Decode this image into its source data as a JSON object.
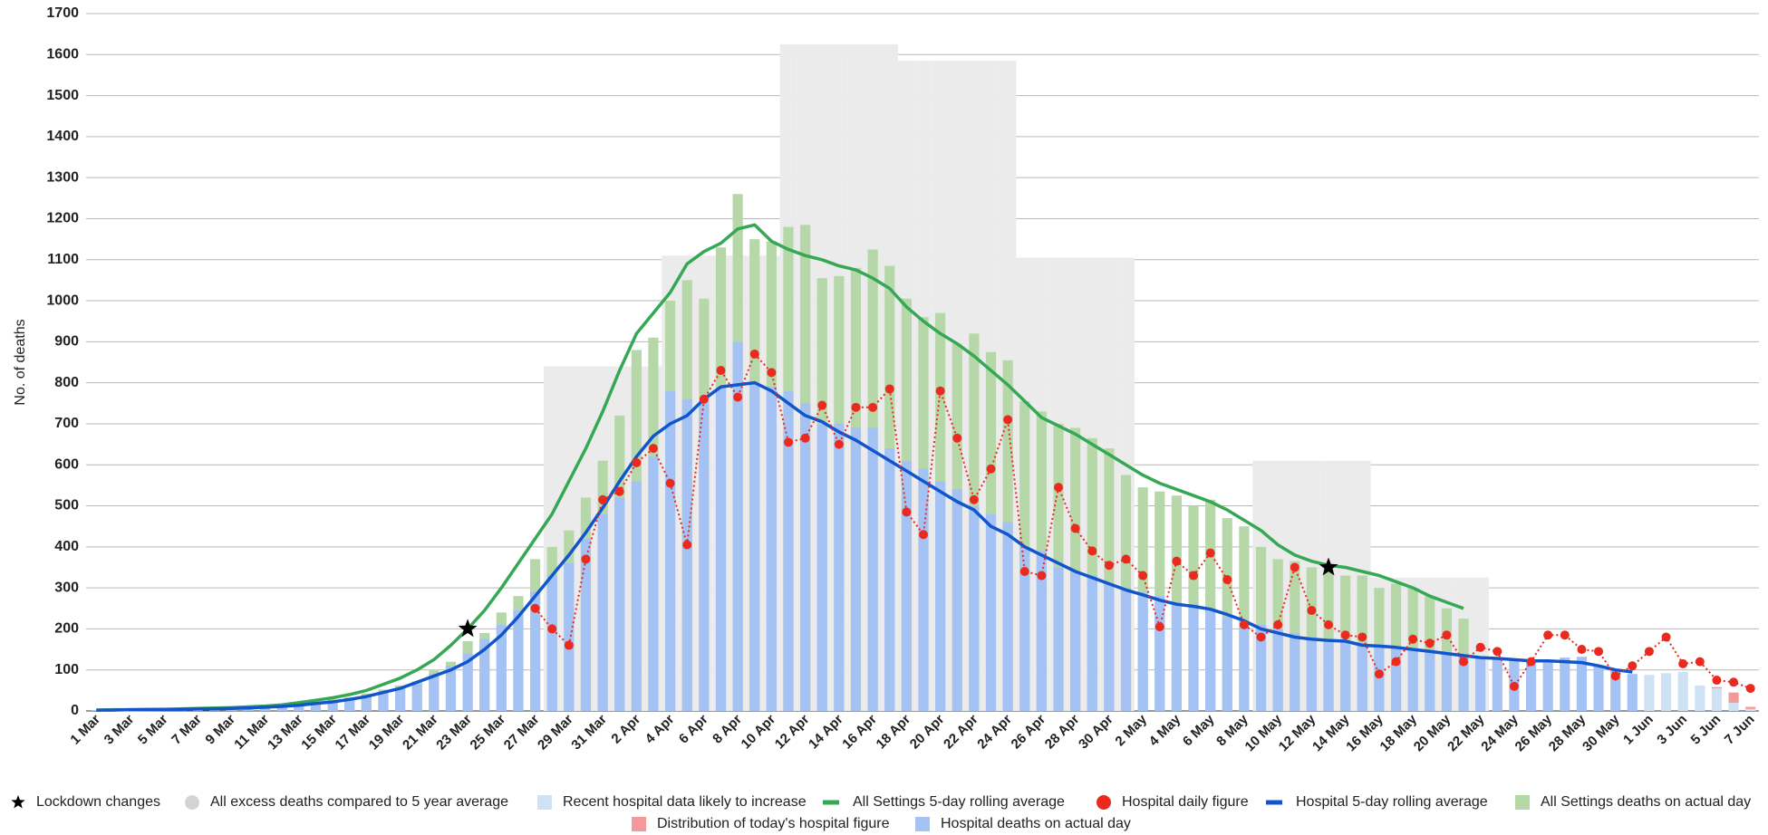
{
  "chart_data": {
    "type": "combo",
    "y_label": "No. of deaths",
    "ylim": [
      0,
      1700
    ],
    "yticks": [
      0,
      100,
      200,
      300,
      400,
      500,
      600,
      700,
      800,
      900,
      1000,
      1100,
      1200,
      1300,
      1400,
      1500,
      1600,
      1700
    ],
    "grid": true,
    "legend": "bottom",
    "categories": [
      "1 Mar",
      null,
      "3 Mar",
      null,
      "5 Mar",
      null,
      "7 Mar",
      null,
      "9 Mar",
      null,
      "11 Mar",
      null,
      "13 Mar",
      null,
      "15 Mar",
      null,
      "17 Mar",
      null,
      "19 Mar",
      null,
      "21 Mar",
      null,
      "23 Mar",
      null,
      "25 Mar",
      null,
      "27 Mar",
      null,
      "29 Mar",
      null,
      "31 Mar",
      null,
      "2 Apr",
      null,
      "4 Apr",
      null,
      "6 Apr",
      null,
      "8 Apr",
      null,
      "10 Apr",
      null,
      "12 Apr",
      null,
      "14 Apr",
      null,
      "16 Apr",
      null,
      "18 Apr",
      null,
      "20 Apr",
      null,
      "22 Apr",
      null,
      "24 Apr",
      null,
      "26 Apr",
      null,
      "28 Apr",
      null,
      "30 Apr",
      null,
      "2 May",
      null,
      "4 May",
      null,
      "6 May",
      null,
      "8 May",
      null,
      "10 May",
      null,
      "12 May",
      null,
      "14 May",
      null,
      "16 May",
      null,
      "18 May",
      null,
      "20 May",
      null,
      "22 May",
      null,
      "24 May",
      null,
      "26 May",
      null,
      "28 May",
      null,
      "30 May",
      null,
      "1 Jun",
      null,
      "3 Jun",
      null,
      "5 Jun",
      null,
      "7 Jun"
    ],
    "series": [
      {
        "name": "Lockdown changes",
        "type": "scatter",
        "marker": "star",
        "color": "#000000",
        "values": [
          null,
          null,
          null,
          null,
          null,
          null,
          null,
          null,
          null,
          null,
          null,
          null,
          null,
          null,
          null,
          null,
          null,
          null,
          null,
          null,
          null,
          null,
          200,
          null,
          null,
          null,
          null,
          null,
          null,
          null,
          null,
          null,
          null,
          null,
          null,
          null,
          null,
          null,
          null,
          null,
          null,
          null,
          null,
          null,
          null,
          null,
          null,
          null,
          null,
          null,
          null,
          null,
          null,
          null,
          null,
          null,
          null,
          null,
          null,
          null,
          null,
          null,
          null,
          null,
          null,
          null,
          null,
          null,
          null,
          null,
          null,
          null,
          null,
          350,
          null,
          null,
          null,
          null,
          null,
          null,
          null,
          null,
          null,
          null,
          null,
          null,
          null,
          null,
          null,
          null,
          null,
          null,
          null,
          null,
          null,
          null,
          null,
          null,
          null
        ]
      },
      {
        "name": "All excess deaths compared to 5 year average",
        "type": "bar",
        "bar_width": 1,
        "color": "#ebebeb",
        "legend_color": "#d4d4d4",
        "legend_marker": "circle",
        "values": [
          null,
          null,
          null,
          null,
          null,
          null,
          null,
          null,
          null,
          null,
          null,
          null,
          null,
          null,
          null,
          null,
          null,
          null,
          null,
          null,
          null,
          null,
          null,
          null,
          null,
          null,
          null,
          840,
          840,
          840,
          840,
          840,
          840,
          840,
          1110,
          1110,
          1110,
          1110,
          1110,
          1110,
          1110,
          1625,
          1625,
          1625,
          1625,
          1625,
          1625,
          1625,
          1585,
          1585,
          1585,
          1585,
          1585,
          1585,
          1585,
          1105,
          1105,
          1105,
          1105,
          1105,
          1105,
          1105,
          null,
          null,
          null,
          null,
          null,
          null,
          null,
          610,
          610,
          610,
          610,
          610,
          610,
          610,
          325,
          325,
          325,
          325,
          325,
          325,
          325,
          null,
          null,
          null,
          null,
          null,
          null,
          null,
          null,
          null,
          null,
          null,
          null,
          null,
          null,
          null,
          null
        ]
      },
      {
        "name": "Recent hospital data likely to increase",
        "type": "bar",
        "bar_width": 0.6,
        "stack": true,
        "color": "#cfe2f3",
        "values": [
          null,
          null,
          null,
          null,
          null,
          null,
          null,
          null,
          null,
          null,
          null,
          null,
          null,
          null,
          null,
          null,
          null,
          null,
          null,
          null,
          null,
          null,
          null,
          null,
          null,
          null,
          null,
          null,
          null,
          null,
          null,
          null,
          null,
          null,
          null,
          null,
          null,
          null,
          null,
          null,
          null,
          null,
          null,
          null,
          null,
          null,
          null,
          null,
          null,
          null,
          null,
          null,
          null,
          null,
          null,
          null,
          null,
          null,
          null,
          null,
          null,
          null,
          null,
          null,
          null,
          null,
          null,
          null,
          null,
          null,
          null,
          null,
          null,
          null,
          null,
          null,
          null,
          null,
          null,
          null,
          null,
          null,
          null,
          null,
          null,
          null,
          null,
          null,
          null,
          null,
          null,
          null,
          88,
          92,
          95,
          62,
          55,
          20,
          5
        ]
      },
      {
        "name": "All Settings 5-day rolling average",
        "type": "line",
        "color": "#34a853",
        "values": [
          2,
          3,
          3,
          4,
          4,
          5,
          6,
          7,
          8,
          10,
          12,
          15,
          20,
          26,
          32,
          40,
          50,
          65,
          80,
          100,
          125,
          160,
          200,
          245,
          300,
          360,
          420,
          480,
          560,
          640,
          730,
          830,
          920,
          970,
          1020,
          1090,
          1120,
          1140,
          1175,
          1185,
          1145,
          1125,
          1110,
          1100,
          1085,
          1075,
          1055,
          1030,
          985,
          950,
          920,
          895,
          865,
          830,
          795,
          755,
          715,
          695,
          675,
          650,
          625,
          600,
          575,
          555,
          540,
          525,
          510,
          490,
          465,
          440,
          405,
          380,
          365,
          355,
          350,
          340,
          330,
          315,
          300,
          280,
          265,
          250,
          null,
          null,
          null,
          null,
          null,
          null,
          null,
          null,
          null,
          null,
          null,
          null,
          null,
          null,
          null,
          null,
          null
        ]
      },
      {
        "name": "Hospital daily figure",
        "type": "line",
        "line_style": "dotted",
        "markers": true,
        "color": "#ea2a1e",
        "values": [
          null,
          null,
          null,
          null,
          null,
          null,
          null,
          null,
          null,
          null,
          null,
          null,
          null,
          null,
          null,
          null,
          null,
          null,
          null,
          null,
          null,
          null,
          null,
          null,
          null,
          null,
          250,
          200,
          160,
          370,
          515,
          535,
          605,
          640,
          555,
          405,
          760,
          830,
          765,
          870,
          825,
          655,
          665,
          745,
          650,
          740,
          740,
          785,
          485,
          430,
          780,
          665,
          515,
          590,
          710,
          340,
          330,
          545,
          445,
          390,
          355,
          370,
          330,
          205,
          365,
          330,
          385,
          320,
          210,
          180,
          210,
          350,
          245,
          210,
          185,
          180,
          90,
          120,
          175,
          165,
          185,
          120,
          155,
          145,
          60,
          120,
          185,
          185,
          150,
          145,
          85,
          110,
          145,
          180,
          115,
          120,
          75,
          70,
          55
        ]
      },
      {
        "name": "Hospital 5-day rolling average",
        "type": "line",
        "color": "#1155cc",
        "values": [
          2,
          2,
          3,
          3,
          4,
          4,
          5,
          5,
          6,
          7,
          9,
          11,
          14,
          18,
          22,
          28,
          35,
          45,
          55,
          70,
          85,
          100,
          120,
          150,
          185,
          230,
          280,
          330,
          380,
          435,
          495,
          560,
          620,
          670,
          700,
          720,
          760,
          790,
          795,
          800,
          780,
          750,
          720,
          705,
          680,
          660,
          635,
          610,
          585,
          560,
          535,
          510,
          490,
          450,
          430,
          400,
          380,
          360,
          340,
          325,
          310,
          295,
          283,
          270,
          260,
          255,
          248,
          235,
          220,
          200,
          190,
          180,
          175,
          172,
          170,
          160,
          158,
          155,
          150,
          145,
          140,
          135,
          130,
          128,
          125,
          122,
          122,
          120,
          118,
          110,
          100,
          95,
          null,
          null,
          null,
          null,
          null,
          null,
          null
        ]
      },
      {
        "name": "All Settings deaths on actual day",
        "type": "bar",
        "bar_width": 0.6,
        "color": "#b6d7a8",
        "values": [
          2,
          2,
          3,
          3,
          4,
          5,
          5,
          6,
          7,
          8,
          10,
          14,
          18,
          22,
          28,
          33,
          42,
          52,
          62,
          72,
          100,
          120,
          170,
          190,
          240,
          280,
          370,
          400,
          440,
          520,
          610,
          720,
          880,
          910,
          1000,
          1050,
          1005,
          1130,
          1260,
          1150,
          1145,
          1180,
          1185,
          1055,
          1060,
          1080,
          1125,
          1085,
          1005,
          960,
          970,
          895,
          920,
          875,
          855,
          755,
          730,
          700,
          690,
          665,
          640,
          575,
          545,
          535,
          525,
          500,
          515,
          470,
          450,
          400,
          370,
          365,
          350,
          345,
          330,
          330,
          300,
          310,
          300,
          280,
          250,
          225,
          null,
          null,
          null,
          null,
          null,
          null,
          null,
          null,
          null,
          null,
          null,
          null,
          null,
          null,
          null,
          null,
          null
        ]
      },
      {
        "name": "Distribution of today's hospital figure",
        "type": "bar",
        "bar_width": 0.6,
        "stack": true,
        "color": "#f4999a",
        "values": [
          null,
          null,
          null,
          null,
          null,
          null,
          null,
          null,
          null,
          null,
          null,
          null,
          null,
          null,
          null,
          null,
          null,
          null,
          null,
          null,
          null,
          null,
          null,
          null,
          null,
          null,
          null,
          null,
          null,
          null,
          null,
          null,
          null,
          null,
          null,
          null,
          null,
          null,
          null,
          null,
          null,
          null,
          null,
          null,
          null,
          null,
          null,
          null,
          null,
          null,
          null,
          null,
          null,
          null,
          null,
          null,
          null,
          null,
          null,
          null,
          null,
          null,
          null,
          null,
          null,
          null,
          null,
          null,
          null,
          null,
          null,
          null,
          null,
          null,
          null,
          null,
          null,
          null,
          null,
          null,
          null,
          null,
          null,
          null,
          null,
          null,
          null,
          null,
          null,
          null,
          null,
          null,
          null,
          null,
          null,
          null,
          3,
          25,
          5
        ]
      },
      {
        "name": "Hospital deaths on actual day",
        "type": "bar",
        "bar_width": 0.6,
        "color": "#a4c2f4",
        "values": [
          2,
          2,
          3,
          3,
          4,
          4,
          5,
          5,
          6,
          7,
          9,
          12,
          15,
          18,
          22,
          28,
          35,
          45,
          55,
          65,
          90,
          110,
          140,
          175,
          210,
          245,
          290,
          330,
          360,
          420,
          480,
          520,
          560,
          620,
          780,
          760,
          760,
          790,
          900,
          800,
          790,
          780,
          750,
          700,
          700,
          690,
          690,
          640,
          610,
          590,
          560,
          540,
          500,
          480,
          460,
          400,
          390,
          350,
          340,
          330,
          310,
          300,
          290,
          280,
          265,
          260,
          250,
          230,
          220,
          210,
          200,
          190,
          180,
          175,
          170,
          165,
          160,
          155,
          150,
          145,
          140,
          135,
          130,
          125,
          125,
          120,
          118,
          130,
          132,
          110,
          100,
          90,
          null,
          null,
          null,
          null,
          null,
          null,
          null
        ]
      }
    ]
  }
}
